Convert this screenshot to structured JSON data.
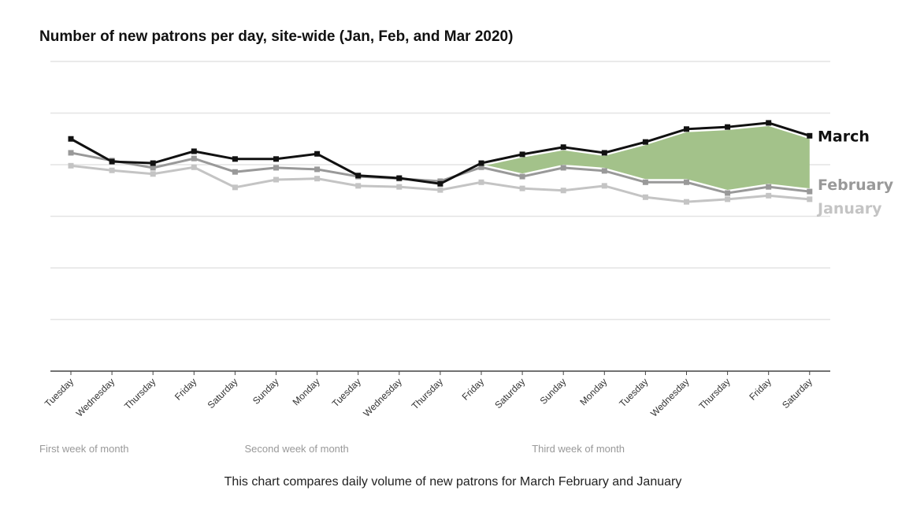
{
  "chart_data": {
    "type": "line",
    "title": "Number of new patrons per day, site-wide (Jan, Feb, and Mar 2020)",
    "caption": "This chart compares daily volume of new patrons for March February and January",
    "categories": [
      "Tuesday",
      "Wednesday",
      "Thursday",
      "Friday",
      "Saturday",
      "Sunday",
      "Monday",
      "Tuesday",
      "Wednesday",
      "Thursday",
      "Friday",
      "Saturday",
      "Sunday",
      "Monday",
      "Tuesday",
      "Wednesday",
      "Thursday",
      "Friday",
      "Saturday"
    ],
    "week_labels": [
      {
        "label": "First week of month",
        "start_index": 0
      },
      {
        "label": "Second week of month",
        "start_index": 5
      },
      {
        "label": "Third week of month",
        "start_index": 12
      }
    ],
    "ylim": [
      0,
      6
    ],
    "y_tick_labels_shown": false,
    "grid": true,
    "series": [
      {
        "name": "March",
        "color": "#111111",
        "values": [
          4.5,
          4.06,
          4.03,
          4.26,
          4.11,
          4.11,
          4.21,
          3.79,
          3.74,
          3.63,
          4.03,
          4.2,
          4.34,
          4.23,
          4.44,
          4.69,
          4.73,
          4.81,
          4.56
        ]
      },
      {
        "name": "February",
        "color": "#999999",
        "values": [
          4.23,
          4.08,
          3.94,
          4.12,
          3.86,
          3.94,
          3.91,
          3.77,
          3.73,
          3.68,
          3.95,
          3.77,
          3.94,
          3.88,
          3.66,
          3.66,
          3.45,
          3.57,
          3.48
        ]
      },
      {
        "name": "January",
        "color": "#c4c4c4",
        "values": [
          3.98,
          3.89,
          3.82,
          3.95,
          3.56,
          3.71,
          3.73,
          3.59,
          3.57,
          3.51,
          3.66,
          3.54,
          3.5,
          3.59,
          3.37,
          3.28,
          3.33,
          3.4,
          3.33
        ]
      }
    ],
    "highlight": {
      "between": [
        "March",
        "February"
      ],
      "from_index": 10,
      "color": "#a3c28a"
    }
  }
}
